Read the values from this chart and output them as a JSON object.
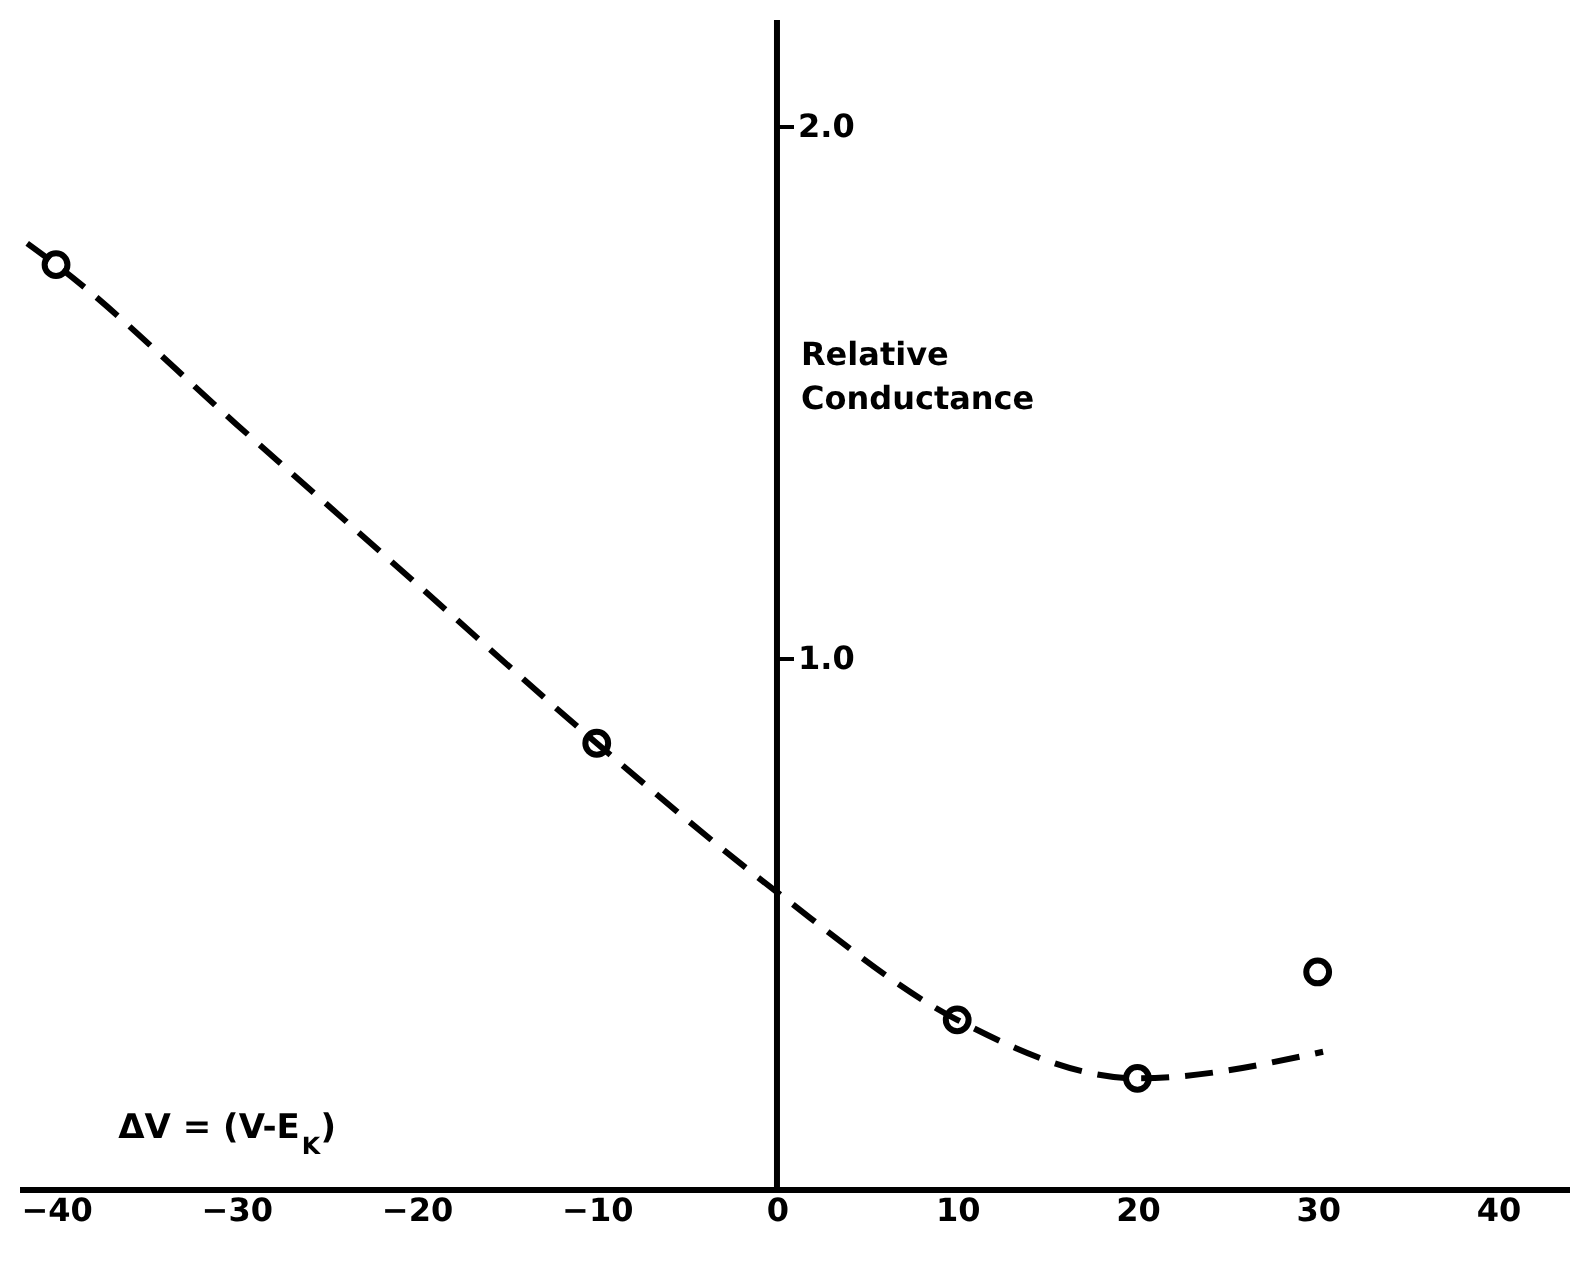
{
  "chart_data": {
    "type": "scatter",
    "xlabel": "ΔV = (V-E$_{K}$)",
    "ylabel": "Relative Conductance",
    "xlim": [
      -42,
      44
    ],
    "ylim": [
      0,
      2.2
    ],
    "xticks": [
      -40,
      -30,
      -20,
      -10,
      0,
      10,
      20,
      30,
      40
    ],
    "yticks": [
      {
        "value": 1,
        "label": "1.0"
      },
      {
        "value": 2,
        "label": "2.0"
      }
    ],
    "grid": false,
    "marker": "circle",
    "series": [
      {
        "color": "#000000",
        "x": [
          -40,
          -10,
          10,
          20,
          30
        ],
        "values": [
          1.74,
          0.84,
          0.32,
          0.21,
          0.41
        ]
      },
      {
        "type": "line",
        "line_style": "dashed",
        "marker": "none",
        "color": "#000000",
        "x": [
          -41.6,
          -40,
          -30,
          -20,
          -10,
          0,
          10,
          20,
          30.3
        ],
        "values": [
          1.78,
          1.74,
          1.44,
          1.14,
          0.84,
          0.56,
          0.32,
          0.21,
          0.26
        ]
      }
    ]
  }
}
